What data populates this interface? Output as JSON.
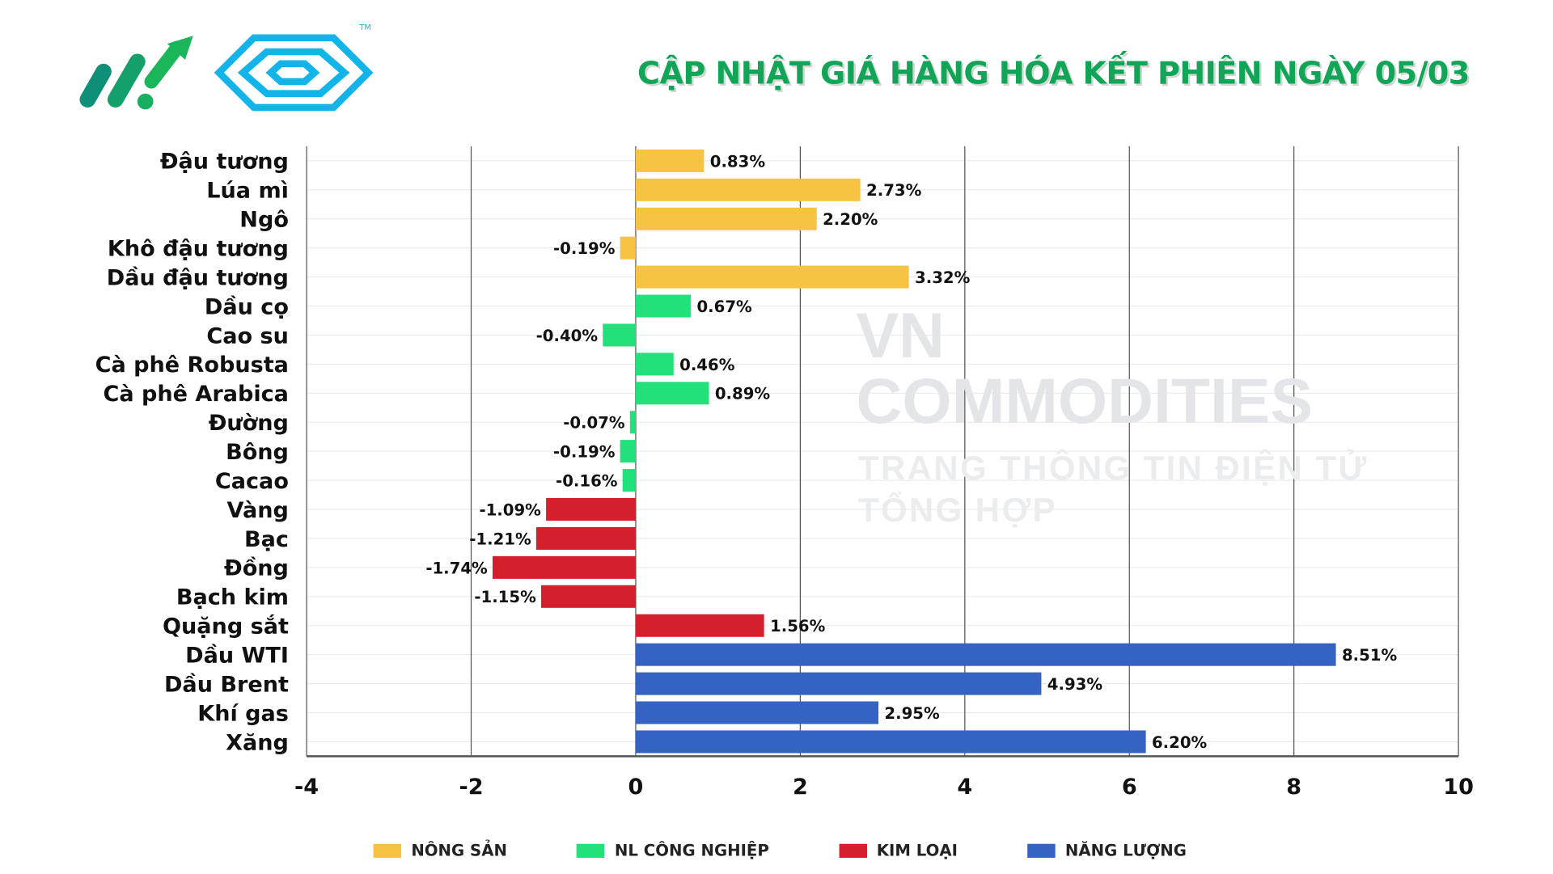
{
  "title": "CẬP NHẬT GIÁ HÀNG HÓA KẾT PHIÊN NGÀY 05/03",
  "watermark": {
    "line1": "VN COMMODITIES",
    "line2": "TRANG THÔNG TIN ĐIỆN TỬ TỔNG HỢP"
  },
  "logo": {
    "trademark": "TM"
  },
  "colors": {
    "title": "#12a557",
    "NÔNG SẢN": "#f6c342",
    "NL CÔNG NGHIỆP": "#22e07a",
    "KIM LOẠI": "#d61f2c",
    "NĂNG LƯỢNG": "#3563c4"
  },
  "chart_data": {
    "type": "bar",
    "orientation": "horizontal",
    "title": "CẬP NHẬT GIÁ HÀNG HÓA KẾT PHIÊN NGÀY 05/03",
    "xlim": [
      -4,
      10
    ],
    "xticks": [
      "-4",
      "-2",
      "0",
      "2",
      "4",
      "6",
      "8",
      "10"
    ],
    "grid": true,
    "legend_position": "bottom",
    "series": [
      {
        "name": "NÔNG SẢN"
      },
      {
        "name": "NL CÔNG NGHIỆP"
      },
      {
        "name": "KIM LOẠI"
      },
      {
        "name": "NĂNG LƯỢNG"
      }
    ],
    "categories": [
      "Đậu tương",
      "Lúa mì",
      "Ngô",
      "Khô đậu tương",
      "Dầu đậu tương",
      "Dầu cọ",
      "Cao su",
      "Cà phê Robusta",
      "Cà phê Arabica",
      "Đường",
      "Bông",
      "Cacao",
      "Vàng",
      "Bạc",
      "Đồng",
      "Bạch kim",
      "Quặng sắt",
      "Dầu WTI",
      "Dầu Brent",
      "Khí gas",
      "Xăng"
    ],
    "values": [
      0.83,
      2.73,
      2.2,
      -0.19,
      3.32,
      0.67,
      -0.4,
      0.46,
      0.89,
      -0.07,
      -0.19,
      -0.16,
      -1.09,
      -1.21,
      -1.74,
      -1.15,
      1.56,
      8.51,
      4.93,
      2.95,
      6.2
    ],
    "labels": [
      "0.83%",
      "2.73%",
      "2.20%",
      "-0.19%",
      "3.32%",
      "0.67%",
      "-0.40%",
      "0.46%",
      "0.89%",
      "-0.07%",
      "-0.19%",
      "-0.16%",
      "-1.09%",
      "-1.21%",
      "-1.74%",
      "-1.15%",
      "1.56%",
      "8.51%",
      "4.93%",
      "2.95%",
      "6.20%"
    ],
    "groups": [
      "NÔNG SẢN",
      "NÔNG SẢN",
      "NÔNG SẢN",
      "NÔNG SẢN",
      "NÔNG SẢN",
      "NL CÔNG NGHIỆP",
      "NL CÔNG NGHIỆP",
      "NL CÔNG NGHIỆP",
      "NL CÔNG NGHIỆP",
      "NL CÔNG NGHIỆP",
      "NL CÔNG NGHIỆP",
      "NL CÔNG NGHIỆP",
      "KIM LOẠI",
      "KIM LOẠI",
      "KIM LOẠI",
      "KIM LOẠI",
      "KIM LOẠI",
      "NĂNG LƯỢNG",
      "NĂNG LƯỢNG",
      "NĂNG LƯỢNG",
      "NĂNG LƯỢNG"
    ]
  }
}
